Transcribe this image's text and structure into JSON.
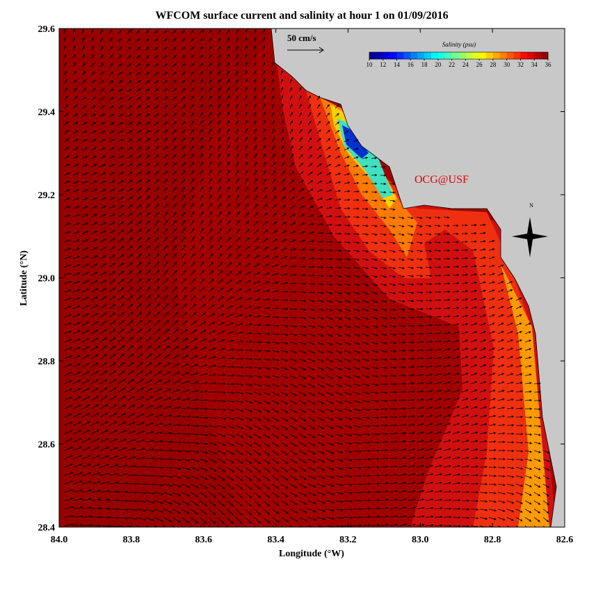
{
  "chart_data": {
    "type": "map",
    "title": "WFCOM surface current and salinity at hour 1 on 01/09/2016",
    "xlabel": "Longitude (°W)",
    "ylabel": "Latitude (°N)",
    "xlim": [
      84.0,
      82.6
    ],
    "ylim": [
      28.4,
      29.6
    ],
    "xticks": [
      {
        "value": 84.0,
        "label": "84.0"
      },
      {
        "value": 83.8,
        "label": "83.8"
      },
      {
        "value": 83.6,
        "label": "83.6"
      },
      {
        "value": 83.4,
        "label": "83.4"
      },
      {
        "value": 83.2,
        "label": "83.2"
      },
      {
        "value": 83.0,
        "label": "83.0"
      },
      {
        "value": 82.8,
        "label": "82.8"
      },
      {
        "value": 82.6,
        "label": "82.6"
      }
    ],
    "yticks": [
      {
        "value": 28.4,
        "label": "28.4"
      },
      {
        "value": 28.6,
        "label": "28.6"
      },
      {
        "value": 28.8,
        "label": "28.8"
      },
      {
        "value": 29.0,
        "label": "29.0"
      },
      {
        "value": 29.2,
        "label": "29.2"
      },
      {
        "value": 29.4,
        "label": "29.4"
      },
      {
        "value": 29.6,
        "label": "29.6"
      }
    ],
    "scale_label": "50 cm/s",
    "colorbar": {
      "title": "Salinity (psu)",
      "colormap": "jet",
      "lim": [
        10,
        36
      ],
      "ticks": [
        10,
        12,
        14,
        16,
        18,
        20,
        22,
        24,
        26,
        28,
        30,
        32,
        34,
        36
      ]
    },
    "annotation": "OCG@USF",
    "compass": "N"
  }
}
